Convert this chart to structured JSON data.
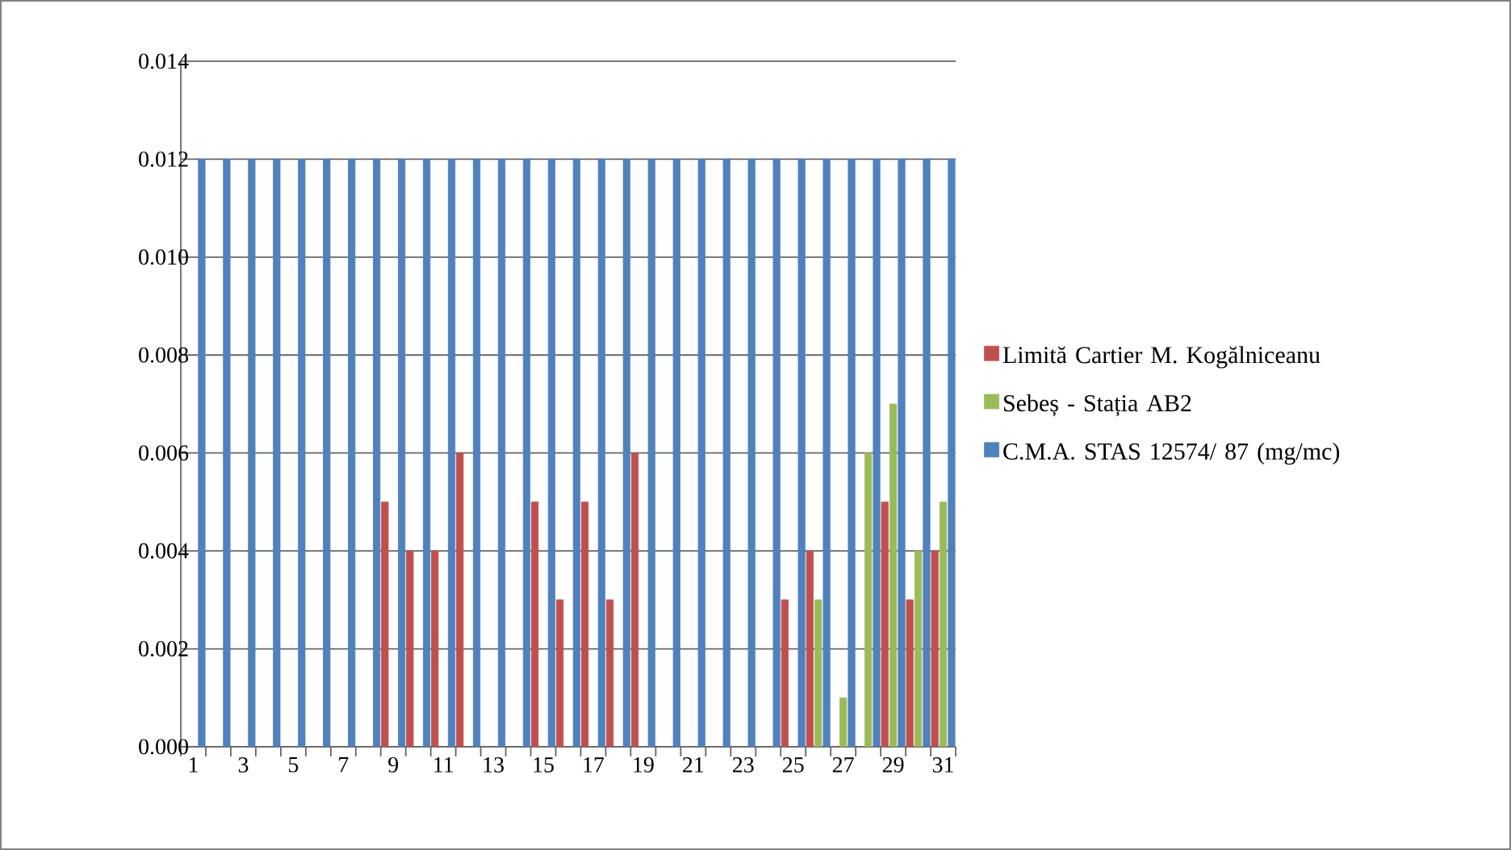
{
  "chart_data": {
    "type": "bar",
    "categories": [
      "1",
      null,
      "3",
      null,
      "5",
      null,
      "7",
      null,
      "9",
      null,
      "11",
      null,
      "13",
      null,
      "15",
      null,
      "17",
      null,
      "19",
      null,
      "21",
      null,
      "23",
      null,
      "25",
      null,
      "27",
      null,
      "29",
      null,
      "31"
    ],
    "series": [
      {
        "name": "Limită Cartier M. Kogălniceanu",
        "color": "#c0504d",
        "values": [
          null,
          null,
          null,
          null,
          null,
          null,
          null,
          null,
          0.005,
          0.004,
          0.004,
          0.006,
          null,
          null,
          0.005,
          0.003,
          0.005,
          0.003,
          0.006,
          null,
          null,
          null,
          null,
          null,
          0.003,
          0.004,
          null,
          null,
          0.005,
          0.003,
          0.004
        ]
      },
      {
        "name": "Sebeș - Stația AB2",
        "color": "#9bbb59",
        "values": [
          null,
          null,
          null,
          null,
          null,
          null,
          null,
          null,
          null,
          null,
          null,
          null,
          null,
          null,
          null,
          null,
          null,
          null,
          null,
          null,
          null,
          null,
          null,
          null,
          null,
          0.003,
          0.001,
          0.006,
          0.007,
          0.004,
          0.005
        ]
      },
      {
        "name": "C.M.A. STAS 12574/ 87 (mg/mc)",
        "color": "#4f81bd",
        "values": [
          0.012,
          0.012,
          0.012,
          0.012,
          0.012,
          0.012,
          0.012,
          0.012,
          0.012,
          0.012,
          0.012,
          0.012,
          0.012,
          0.012,
          0.012,
          0.012,
          0.012,
          0.012,
          0.012,
          0.012,
          0.012,
          0.012,
          0.012,
          0.012,
          0.012,
          0.012,
          0.012,
          0.012,
          0.012,
          0.012,
          0.012
        ]
      }
    ],
    "ylim": [
      0,
      0.014
    ],
    "yticks": [
      {
        "value": 0,
        "label": "0.000"
      },
      0.002,
      0.004,
      0.006,
      0.008,
      {
        "value": 0.01,
        "label": "0.010"
      },
      0.012,
      0.014
    ],
    "grid": "y",
    "legend": "right"
  }
}
